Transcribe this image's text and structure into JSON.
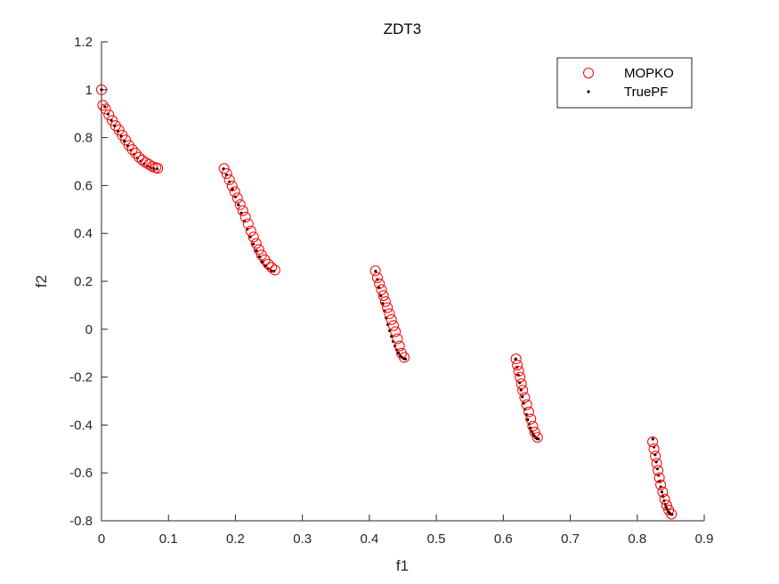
{
  "chart_data": {
    "type": "scatter",
    "title": "ZDT3",
    "xlabel": "f1",
    "ylabel": "f2",
    "xlim": [
      0,
      0.9
    ],
    "ylim": [
      -0.8,
      1.2
    ],
    "xticks": [
      "0",
      "0.1",
      "0.2",
      "0.3",
      "0.4",
      "0.5",
      "0.6",
      "0.7",
      "0.8",
      "0.9"
    ],
    "yticks": [
      "-0.8",
      "-0.6",
      "-0.4",
      "-0.2",
      "0",
      "0.2",
      "0.4",
      "0.6",
      "0.8",
      "1",
      "1.2"
    ],
    "grid": false,
    "legend_position": "top-right",
    "series": [
      {
        "name": "MOPKO",
        "marker": "open-circle",
        "color": "#ff0000",
        "points": [
          [
            0.0,
            1.0
          ],
          [
            0.002,
            0.935
          ],
          [
            0.006,
            0.92
          ],
          [
            0.011,
            0.895
          ],
          [
            0.016,
            0.872
          ],
          [
            0.021,
            0.85
          ],
          [
            0.026,
            0.832
          ],
          [
            0.031,
            0.81
          ],
          [
            0.036,
            0.79
          ],
          [
            0.041,
            0.768
          ],
          [
            0.046,
            0.75
          ],
          [
            0.051,
            0.735
          ],
          [
            0.056,
            0.718
          ],
          [
            0.061,
            0.706
          ],
          [
            0.066,
            0.696
          ],
          [
            0.071,
            0.688
          ],
          [
            0.076,
            0.679
          ],
          [
            0.081,
            0.675
          ],
          [
            0.084,
            0.672
          ],
          [
            0.183,
            0.671
          ],
          [
            0.187,
            0.65
          ],
          [
            0.191,
            0.624
          ],
          [
            0.195,
            0.598
          ],
          [
            0.199,
            0.574
          ],
          [
            0.203,
            0.548
          ],
          [
            0.207,
            0.52
          ],
          [
            0.211,
            0.495
          ],
          [
            0.215,
            0.468
          ],
          [
            0.219,
            0.44
          ],
          [
            0.223,
            0.41
          ],
          [
            0.227,
            0.385
          ],
          [
            0.231,
            0.358
          ],
          [
            0.235,
            0.333
          ],
          [
            0.239,
            0.31
          ],
          [
            0.244,
            0.29
          ],
          [
            0.249,
            0.272
          ],
          [
            0.254,
            0.258
          ],
          [
            0.259,
            0.247
          ],
          [
            0.409,
            0.244
          ],
          [
            0.412,
            0.215
          ],
          [
            0.415,
            0.19
          ],
          [
            0.418,
            0.165
          ],
          [
            0.421,
            0.14
          ],
          [
            0.424,
            0.115
          ],
          [
            0.427,
            0.09
          ],
          [
            0.43,
            0.065
          ],
          [
            0.433,
            0.04
          ],
          [
            0.436,
            0.015
          ],
          [
            0.439,
            -0.01
          ],
          [
            0.442,
            -0.04
          ],
          [
            0.445,
            -0.07
          ],
          [
            0.448,
            -0.1
          ],
          [
            0.452,
            -0.118
          ],
          [
            0.619,
            -0.124
          ],
          [
            0.621,
            -0.15
          ],
          [
            0.623,
            -0.175
          ],
          [
            0.625,
            -0.2
          ],
          [
            0.627,
            -0.228
          ],
          [
            0.629,
            -0.255
          ],
          [
            0.632,
            -0.285
          ],
          [
            0.635,
            -0.315
          ],
          [
            0.638,
            -0.345
          ],
          [
            0.641,
            -0.375
          ],
          [
            0.644,
            -0.405
          ],
          [
            0.647,
            -0.43
          ],
          [
            0.651,
            -0.452
          ],
          [
            0.823,
            -0.47
          ],
          [
            0.825,
            -0.5
          ],
          [
            0.827,
            -0.53
          ],
          [
            0.829,
            -0.56
          ],
          [
            0.831,
            -0.59
          ],
          [
            0.833,
            -0.62
          ],
          [
            0.835,
            -0.65
          ],
          [
            0.838,
            -0.68
          ],
          [
            0.841,
            -0.71
          ],
          [
            0.844,
            -0.735
          ],
          [
            0.847,
            -0.755
          ],
          [
            0.851,
            -0.772
          ]
        ]
      },
      {
        "name": "TruePF",
        "marker": "dot",
        "color": "#000000",
        "segments": [
          [
            0.0,
            0.0830015349
          ],
          [
            0.182228728,
            0.2577623634
          ],
          [
            0.4093136748,
            0.4538821041
          ],
          [
            0.6183967944,
            0.6525117038
          ],
          [
            0.8233317983,
            0.8518328654
          ]
        ],
        "points_per_segment": 18
      }
    ]
  }
}
